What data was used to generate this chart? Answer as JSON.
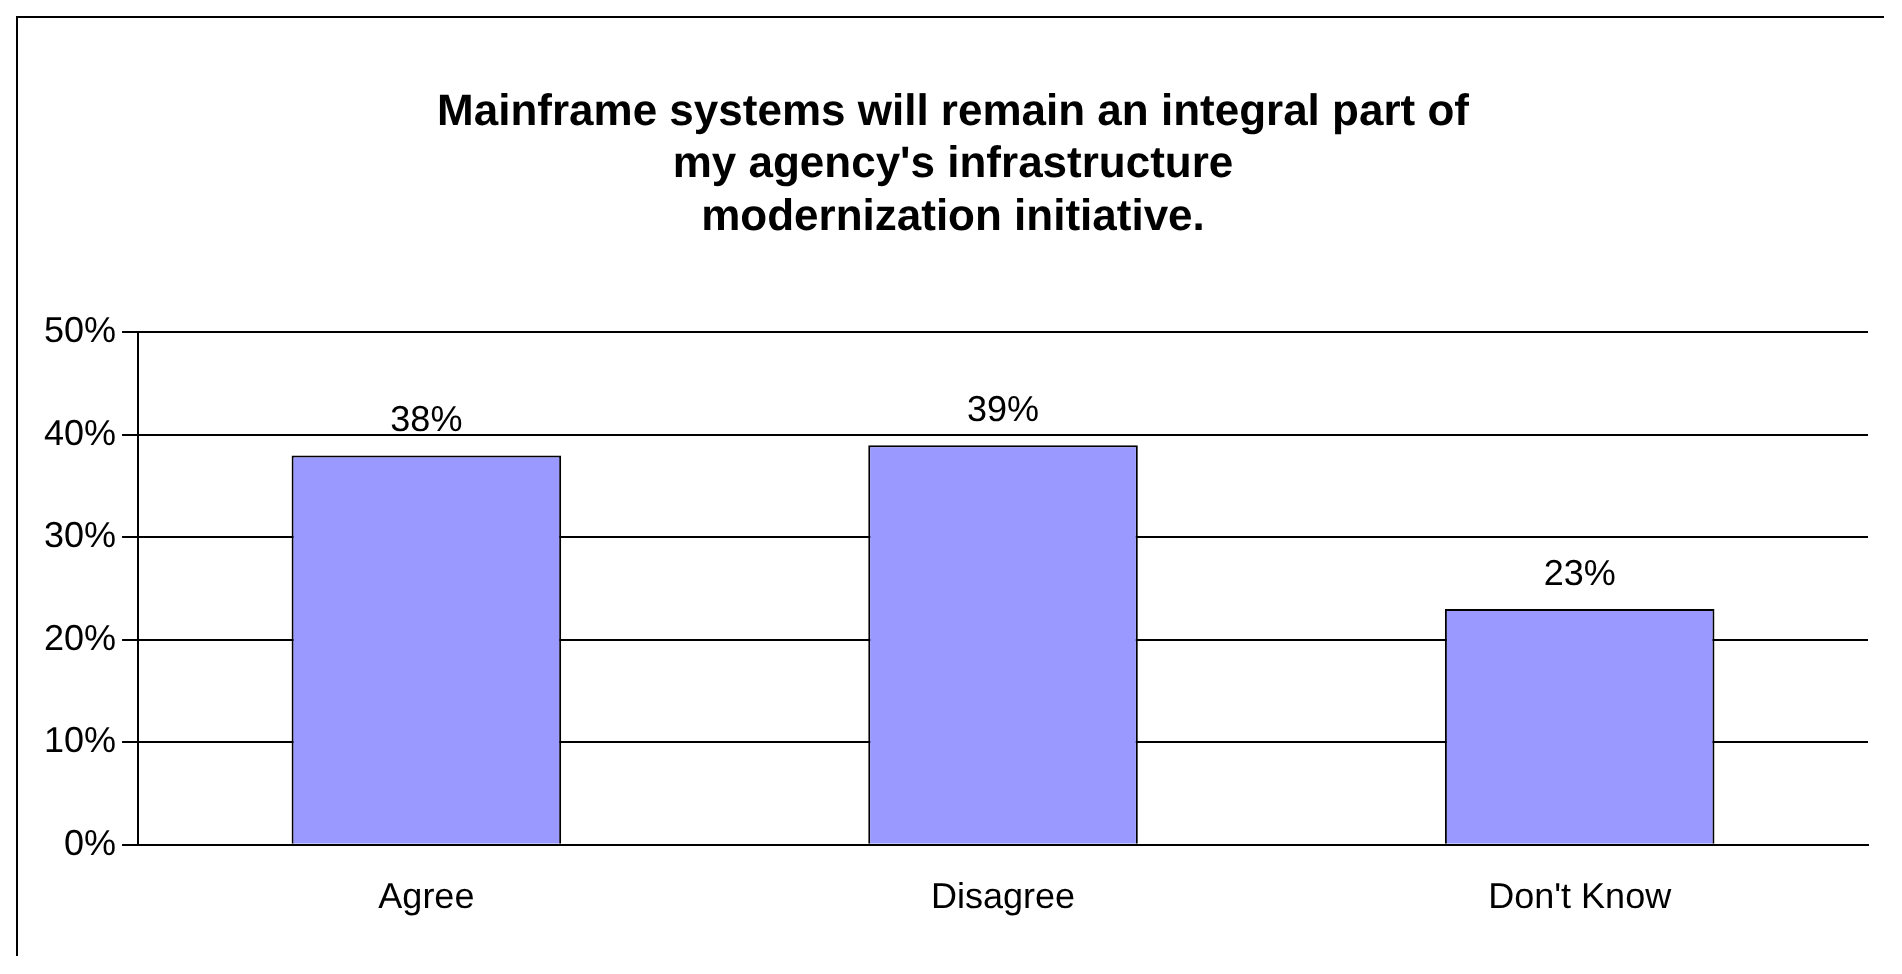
{
  "chart_data": {
    "type": "bar",
    "title": "Mainframe systems will remain an integral part of\nmy agency's infrastructure\nmodernization initiative.",
    "categories": [
      "Agree",
      "Disagree",
      "Don't Know"
    ],
    "values": [
      38,
      39,
      23
    ],
    "value_labels": [
      "38%",
      "39%",
      "23%"
    ],
    "color": "#9999ff",
    "ylim": [
      0,
      50
    ],
    "yticks": [
      {
        "value": 0,
        "label": "0%"
      },
      {
        "value": 10,
        "label": "10%"
      },
      {
        "value": 20,
        "label": "20%"
      },
      {
        "value": 30,
        "label": "30%"
      },
      {
        "value": 40,
        "label": "40%"
      },
      {
        "value": 50,
        "label": "50%"
      }
    ],
    "grid": "y",
    "legend": false
  }
}
